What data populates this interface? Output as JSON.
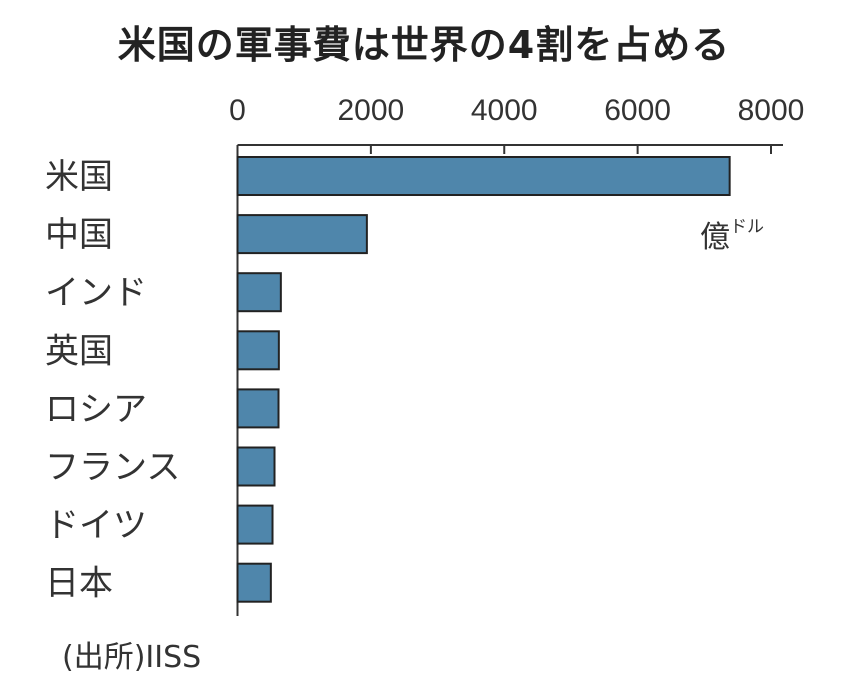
{
  "chart_data": {
    "type": "bar",
    "orientation": "horizontal",
    "title": "米国の軍事費は世界の4割を占める",
    "categories": [
      "米国",
      "中国",
      "インド",
      "英国",
      "ロシア",
      "フランス",
      "ドイツ",
      "日本"
    ],
    "values": [
      7380,
      1940,
      650,
      620,
      615,
      555,
      525,
      500
    ],
    "xlim": [
      0,
      8000
    ],
    "xticks": [
      0,
      2000,
      4000,
      6000,
      8000
    ],
    "unit_main": "億",
    "unit_sub": "ドル",
    "source": "(出所)IISS",
    "bar_color": "#4f86ab",
    "grid": false
  }
}
